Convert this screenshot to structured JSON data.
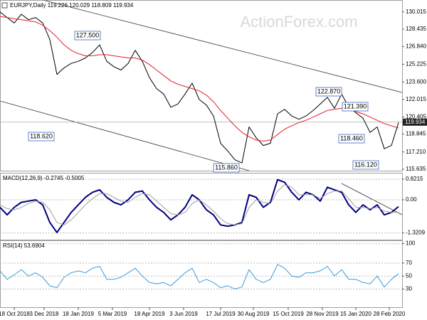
{
  "chart_data": [
    {
      "type": "line",
      "title": "EURJPY,Daily 119.226 120.029 118.809 119.934",
      "watermark": "ActionForex.com",
      "x": [
        0,
        1,
        2,
        3,
        4,
        5,
        6,
        7,
        8,
        9,
        10,
        11,
        12,
        13,
        14,
        15,
        16,
        17,
        18,
        19,
        20,
        21,
        22,
        23,
        24,
        25,
        26,
        27,
        28,
        29,
        30,
        31,
        32,
        33,
        34,
        35,
        36,
        37,
        38,
        39,
        40,
        41,
        42,
        43,
        44,
        45,
        46,
        47,
        48,
        49,
        50,
        51,
        52,
        53,
        54,
        55,
        56
      ],
      "xlim": [
        0,
        56.5
      ],
      "ylim": [
        115.5,
        131.1
      ],
      "yticks": [
        130.015,
        128.435,
        {
          "value": 126.84,
          "label": "126.840"
        },
        125.225,
        {
          "value": 123.6,
          "label": "123.600"
        },
        122.015,
        120.405,
        118.845,
        {
          "value": 117.21,
          "label": "117.210"
        },
        115.635
      ],
      "last_value": 119.934,
      "annotations": [
        "127.500",
        "118.620",
        "115.860",
        "122.870",
        "121.390",
        "118.460",
        "116.120"
      ],
      "series": [
        {
          "name": "EURJPY",
          "color": "#000000",
          "values": [
            130.0,
            129.5,
            129.0,
            129.8,
            129.3,
            129.5,
            129.0,
            127.5,
            124.3,
            124.9,
            125.3,
            125.5,
            125.8,
            126.3,
            127.0,
            125.5,
            125.0,
            124.7,
            125.3,
            126.5,
            125.5,
            124.0,
            123.0,
            122.5,
            121.3,
            121.6,
            122.5,
            123.5,
            122.0,
            121.5,
            120.5,
            118.0,
            117.3,
            116.5,
            116.2,
            119.5,
            118.5,
            117.8,
            118.0,
            120.7,
            121.1,
            120.5,
            120.2,
            120.5,
            121.0,
            121.6,
            122.2,
            121.2,
            122.5,
            121.3,
            120.8,
            120.3,
            119.0,
            119.5,
            117.5,
            117.8,
            119.9
          ]
        },
        {
          "name": "MA",
          "color": "#e0202a",
          "values": [
            129.6,
            129.5,
            129.4,
            129.3,
            129.2,
            129.1,
            128.8,
            128.3,
            127.7,
            127.0,
            126.5,
            126.2,
            126.0,
            126.0,
            126.1,
            126.1,
            126.0,
            125.9,
            125.8,
            125.8,
            125.6,
            125.2,
            124.7,
            124.2,
            123.7,
            123.4,
            123.2,
            123.0,
            122.8,
            122.4,
            121.8,
            121.0,
            120.3,
            119.6,
            119.0,
            118.6,
            118.3,
            118.2,
            118.3,
            118.8,
            119.3,
            119.6,
            119.9,
            120.1,
            120.4,
            120.7,
            121.0,
            121.1,
            121.2,
            121.1,
            120.9,
            120.7,
            120.4,
            120.1,
            119.8,
            119.6,
            119.4
          ]
        }
      ]
    },
    {
      "type": "line",
      "title": "MACD(12,26,9) -0.2745 -0.5005",
      "ylim": [
        -1.586,
        1.076
      ],
      "yticks": [
        0.8215,
        {
          "value": 0,
          "label": "0.00"
        },
        -1.3209
      ],
      "grid": true,
      "series": [
        {
          "name": "MACD",
          "color": "#000080",
          "values": [
            -0.3,
            -0.6,
            -0.3,
            -0.1,
            -0.05,
            0.0,
            -0.2,
            -0.9,
            -1.3,
            -0.9,
            -0.5,
            -0.2,
            0.1,
            0.3,
            0.4,
            0.1,
            -0.1,
            -0.2,
            0.0,
            0.3,
            0.35,
            0.0,
            -0.3,
            -0.5,
            -0.8,
            -0.6,
            -0.3,
            0.2,
            0.0,
            -0.4,
            -0.6,
            -1.0,
            -1.05,
            -1.0,
            -0.9,
            0.2,
            0.1,
            -0.3,
            -0.1,
            0.8,
            0.7,
            0.3,
            0.0,
            0.3,
            0.2,
            -0.05,
            0.5,
            0.4,
            0.3,
            -0.2,
            -0.5,
            -0.2,
            -0.4,
            -0.2,
            -0.6,
            -0.5,
            -0.27
          ]
        },
        {
          "name": "Signal",
          "color": "#a0a0a0",
          "values": [
            -0.2,
            -0.35,
            -0.4,
            -0.3,
            -0.15,
            -0.05,
            -0.1,
            -0.4,
            -0.9,
            -1.0,
            -0.8,
            -0.5,
            -0.2,
            0.05,
            0.25,
            0.25,
            0.1,
            -0.05,
            -0.1,
            0.1,
            0.25,
            0.2,
            -0.05,
            -0.3,
            -0.55,
            -0.6,
            -0.5,
            -0.15,
            0.0,
            -0.2,
            -0.45,
            -0.75,
            -0.95,
            -1.0,
            -0.95,
            -0.3,
            0.0,
            -0.1,
            -0.15,
            0.35,
            0.6,
            0.5,
            0.2,
            0.2,
            0.2,
            0.05,
            0.25,
            0.35,
            0.35,
            0.05,
            -0.3,
            -0.3,
            -0.35,
            -0.3,
            -0.45,
            -0.5,
            -0.5
          ]
        }
      ]
    },
    {
      "type": "line",
      "title": "RSI(14) 53.6904",
      "ylim": [
        2,
        105
      ],
      "yticks": [
        100,
        70,
        50,
        30
      ],
      "grid": true,
      "xticks": [
        {
          "value": 2,
          "label": "18 Oct 2018"
        },
        {
          "value": 6.2,
          "label": "3 Dec 2018"
        },
        {
          "value": 11,
          "label": "18 Jan 2019"
        },
        {
          "value": 15.8,
          "label": "5 Mar 2019"
        },
        {
          "value": 21,
          "label": "18 Apr 2019"
        },
        {
          "value": 25.8,
          "label": "3 Jun 2019"
        },
        {
          "value": 31,
          "label": "17 Jul 2019"
        },
        {
          "value": 35.6,
          "label": "30 Aug 2019"
        },
        {
          "value": 40.5,
          "label": "15 Oct 2019"
        },
        {
          "value": 45.3,
          "label": "28 Nov 2019"
        },
        {
          "value": 50,
          "label": "15 Jan 2020"
        },
        {
          "value": 54.7,
          "label": "28 Feb 2020"
        }
      ],
      "series": [
        {
          "name": "RSI",
          "color": "#3d9ad8",
          "values": [
            58,
            45,
            52,
            60,
            50,
            55,
            48,
            35,
            32,
            48,
            55,
            58,
            55,
            62,
            65,
            45,
            45,
            48,
            55,
            62,
            50,
            40,
            38,
            40,
            35,
            45,
            55,
            62,
            40,
            45,
            40,
            32,
            35,
            30,
            33,
            60,
            45,
            40,
            45,
            68,
            62,
            50,
            48,
            55,
            55,
            58,
            65,
            50,
            60,
            45,
            45,
            40,
            38,
            50,
            33,
            45,
            53.7
          ]
        }
      ]
    }
  ]
}
